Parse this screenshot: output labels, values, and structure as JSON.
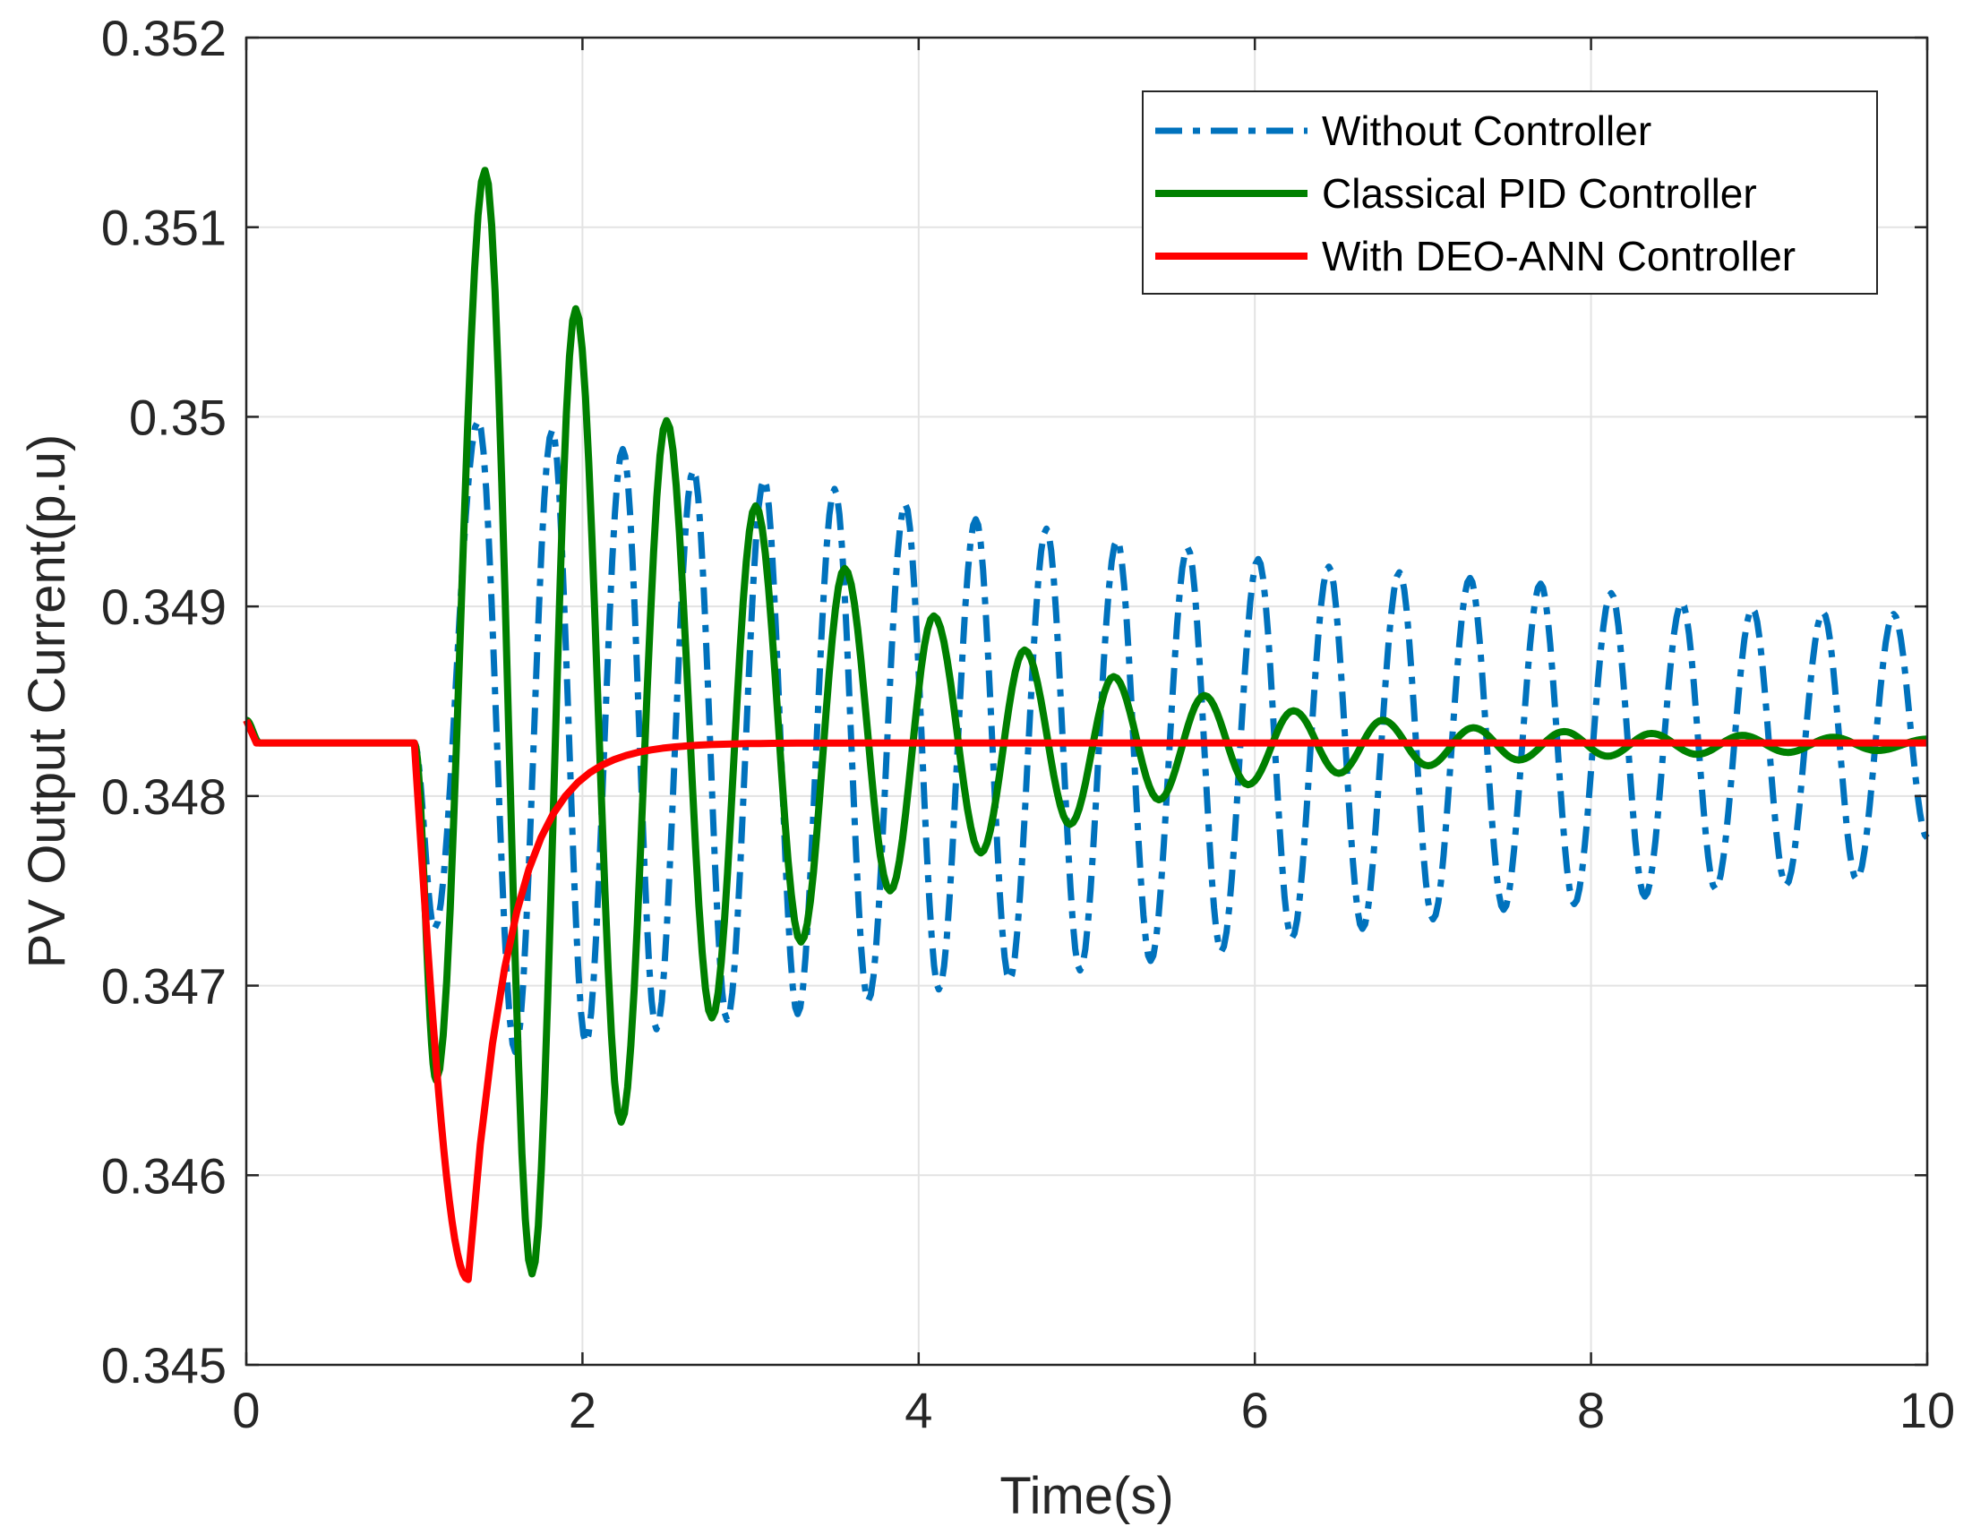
{
  "chart_data": {
    "type": "line",
    "title": "",
    "xlabel": "Time(s)",
    "ylabel": "PV Output Current(p.u)",
    "xlim": [
      0,
      10
    ],
    "ylim": [
      0.345,
      0.352
    ],
    "xticks": [
      0,
      2,
      4,
      6,
      8,
      10
    ],
    "xtick_labels": [
      "0",
      "2",
      "4",
      "6",
      "8",
      "10"
    ],
    "yticks": [
      0.345,
      0.346,
      0.347,
      0.348,
      0.349,
      0.35,
      0.351,
      0.352
    ],
    "ytick_labels": [
      "0.345",
      "0.346",
      "0.347",
      "0.348",
      "0.349",
      "0.35",
      "0.351",
      "0.352"
    ],
    "grid": true,
    "legend_position": "top-right",
    "disturbance_time": 1.0,
    "steady_value": 0.34828,
    "series": [
      {
        "name": "Without Controller",
        "color": "#0072BD",
        "style": "dash-dot",
        "peaks": [
          [
            1.38,
            0.34998
          ],
          [
            1.82,
            0.34993
          ],
          [
            2.24,
            0.34983
          ],
          [
            2.66,
            0.34972
          ],
          [
            3.08,
            0.34967
          ],
          [
            3.5,
            0.34962
          ],
          [
            3.92,
            0.34954
          ],
          [
            4.34,
            0.34946
          ],
          [
            4.76,
            0.34941
          ],
          [
            5.18,
            0.34935
          ],
          [
            5.6,
            0.34931
          ],
          [
            6.02,
            0.34925
          ],
          [
            6.44,
            0.34921
          ],
          [
            6.86,
            0.34918
          ],
          [
            7.28,
            0.34915
          ],
          [
            7.7,
            0.34912
          ],
          [
            8.12,
            0.34907
          ],
          [
            8.54,
            0.34902
          ],
          [
            8.96,
            0.34899
          ],
          [
            9.38,
            0.34897
          ],
          [
            9.8,
            0.34896
          ]
        ],
        "troughs": [
          [
            1.12,
            0.3473
          ],
          [
            1.6,
            0.34665
          ],
          [
            2.02,
            0.3467
          ],
          [
            2.44,
            0.34677
          ],
          [
            2.86,
            0.34682
          ],
          [
            3.28,
            0.34685
          ],
          [
            3.7,
            0.34692
          ],
          [
            4.12,
            0.34698
          ],
          [
            4.54,
            0.34703
          ],
          [
            4.96,
            0.34708
          ],
          [
            5.38,
            0.34713
          ],
          [
            5.8,
            0.34718
          ],
          [
            6.22,
            0.34725
          ],
          [
            6.64,
            0.3473
          ],
          [
            7.06,
            0.34735
          ],
          [
            7.48,
            0.3474
          ],
          [
            7.9,
            0.34743
          ],
          [
            8.32,
            0.34747
          ],
          [
            8.74,
            0.34751
          ],
          [
            9.16,
            0.34753
          ],
          [
            9.58,
            0.34756
          ]
        ],
        "end": [
          10.0,
          0.34778
        ]
      },
      {
        "name": "Classical PID Controller",
        "color": "#008000",
        "style": "solid",
        "peaks": [
          [
            1.42,
            0.3513
          ],
          [
            1.96,
            0.35057
          ],
          [
            2.5,
            0.34998
          ],
          [
            3.03,
            0.34953
          ],
          [
            3.56,
            0.3492
          ],
          [
            4.09,
            0.34895
          ],
          [
            4.63,
            0.34877
          ],
          [
            5.16,
            0.34863
          ],
          [
            5.7,
            0.34853
          ],
          [
            6.23,
            0.34845
          ],
          [
            6.76,
            0.3484
          ],
          [
            7.3,
            0.34836
          ],
          [
            7.84,
            0.34834
          ],
          [
            8.36,
            0.34833
          ],
          [
            8.9,
            0.34832
          ],
          [
            9.44,
            0.34831
          ],
          [
            10.0,
            0.3483
          ]
        ],
        "troughs": [
          [
            1.13,
            0.3465
          ],
          [
            1.7,
            0.34548
          ],
          [
            2.23,
            0.34628
          ],
          [
            2.77,
            0.34683
          ],
          [
            3.3,
            0.34723
          ],
          [
            3.83,
            0.3475
          ],
          [
            4.37,
            0.3477
          ],
          [
            4.9,
            0.34785
          ],
          [
            5.43,
            0.34798
          ],
          [
            5.96,
            0.34806
          ],
          [
            6.5,
            0.34812
          ],
          [
            7.03,
            0.34816
          ],
          [
            7.57,
            0.34819
          ],
          [
            8.1,
            0.34821
          ],
          [
            8.63,
            0.34822
          ],
          [
            9.17,
            0.34823
          ],
          [
            9.7,
            0.34824
          ]
        ]
      },
      {
        "name": "With DEO-ANN Controller",
        "color": "#FF0000",
        "style": "solid",
        "min_point": [
          1.32,
          0.34545
        ],
        "recovery_tau": 0.25
      }
    ]
  }
}
